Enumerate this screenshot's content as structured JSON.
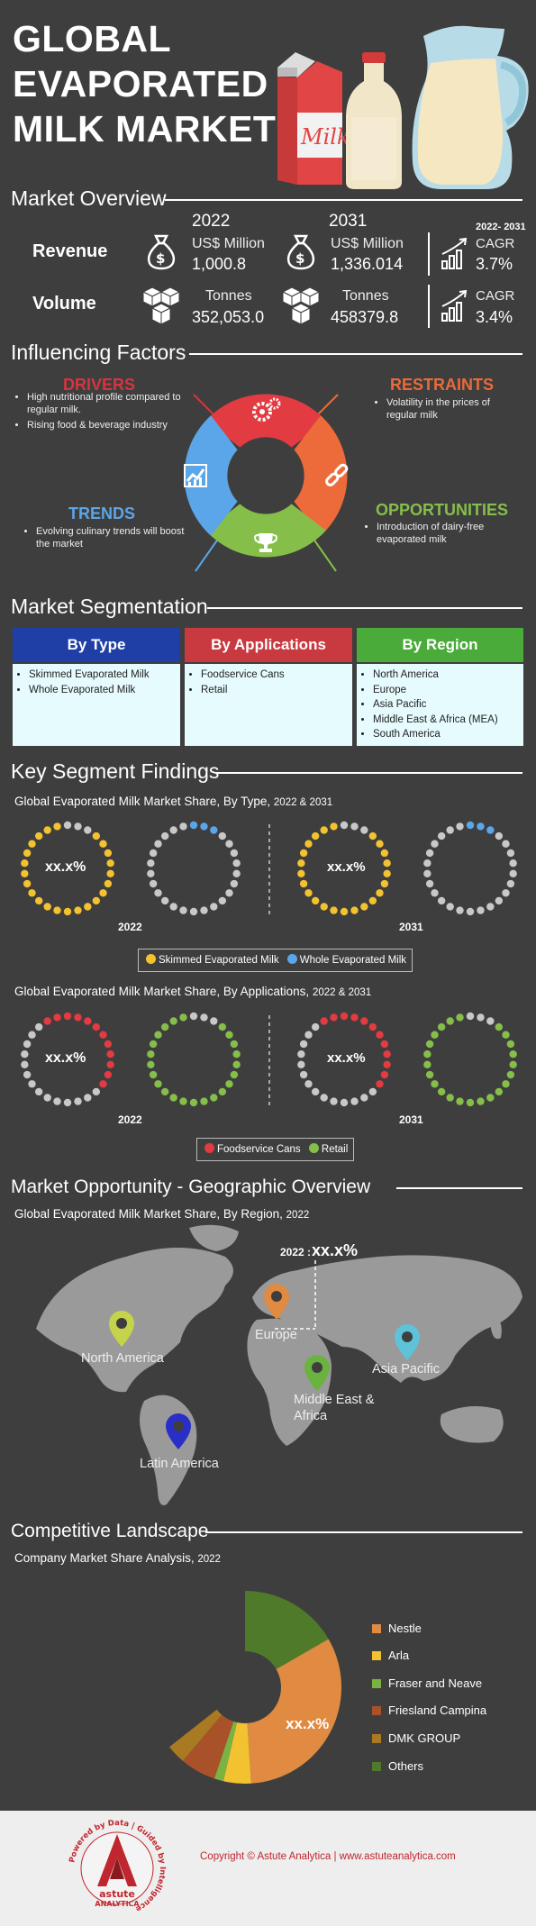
{
  "title": {
    "line1": "GLOBAL",
    "line2": "EVAPORATED",
    "line3": "MILK MARKET"
  },
  "overview": {
    "header": "Market Overview",
    "years": [
      "2022",
      "2031"
    ],
    "cagr_period": "2022- 2031",
    "revenue": {
      "label": "Revenue",
      "unit": "US$ Million",
      "v2022": "1,000.8",
      "v2031": "1,336.014",
      "cagr_label": "CAGR",
      "cagr": "3.7%"
    },
    "volume": {
      "label": "Volume",
      "unit": "Tonnes",
      "v2022": "352,053.0",
      "v2031": "458379.8",
      "cagr_label": "CAGR",
      "cagr": "3.4%"
    }
  },
  "factors": {
    "header": "Influencing Factors",
    "drivers": {
      "title": "DRIVERS",
      "items": [
        "High nutritional profile compared to regular milk.",
        "Rising food & beverage industry"
      ]
    },
    "restraints": {
      "title": "RESTRAINTS",
      "items": [
        "Volatility in the prices of regular milk"
      ]
    },
    "trends": {
      "title": "TRENDS",
      "items": [
        "Evolving culinary trends will boost the market"
      ]
    },
    "opportunities": {
      "title": "OPPORTUNITIES",
      "items": [
        "Introduction of dairy-free evaporated milk"
      ]
    }
  },
  "segmentation": {
    "header": "Market Segmentation",
    "type": {
      "title": "By Type",
      "items": [
        "Skimmed Evaporated Milk",
        "Whole Evaporated Milk"
      ]
    },
    "applications": {
      "title": "By Applications",
      "items": [
        "Foodservice Cans",
        "Retail"
      ]
    },
    "region": {
      "title": "By Region",
      "items": [
        "North America",
        "Europe",
        "Asia Pacific",
        "Middle East & Africa (MEA)",
        "South America"
      ]
    }
  },
  "findings": {
    "header": "Key Segment Findings",
    "by_type": {
      "title": "Global Evaporated Milk Market Share, By Type,",
      "title_years": "2022 & 2031",
      "value_2022": "xx.x%",
      "value_2031": "xx.x%",
      "year_a": "2022",
      "year_b": "2031",
      "legend": [
        "Skimmed Evaporated Milk",
        "Whole Evaporated Milk"
      ]
    },
    "by_app": {
      "title": "Global Evaporated Milk Market Share, By Applications,",
      "title_years": "2022 & 2031",
      "value_2022": "xx.x%",
      "value_2031": "xx.x%",
      "year_a": "2022",
      "year_b": "2031",
      "legend": [
        "Foodservice Cans",
        "Retail"
      ]
    }
  },
  "geo": {
    "header": "Market Opportunity - Geographic Overview",
    "title": "Global Evaporated Milk Market Share, By Region,",
    "title_year": "2022",
    "callout_year": "2022 :",
    "callout_value": "xx.x%",
    "regions": [
      "North America",
      "Europe",
      "Asia Pacific",
      "Middle East & Africa",
      "Latin America"
    ]
  },
  "competitive": {
    "header": "Competitive Landscape",
    "title": "Company Market Share Analysis,",
    "title_year": "2022",
    "donut_value": "xx.x%",
    "companies": [
      {
        "name": "Nestle",
        "color": "#e08a42"
      },
      {
        "name": "Arla",
        "color": "#f2c230"
      },
      {
        "name": "Fraser and Neave",
        "color": "#7ab342"
      },
      {
        "name": "Friesland Campina",
        "color": "#a9522a"
      },
      {
        "name": "DMK GROUP",
        "color": "#a97a22"
      },
      {
        "name": "Others",
        "color": "#4e7a2a"
      }
    ]
  },
  "footer": {
    "brand": "astute",
    "brand2": "ANALYTICA",
    "ring_text": "Powered by Data | Guided by Intelligence",
    "copyright": "Copyright © Astute Analytica  |  www.astuteanalytica.com"
  }
}
